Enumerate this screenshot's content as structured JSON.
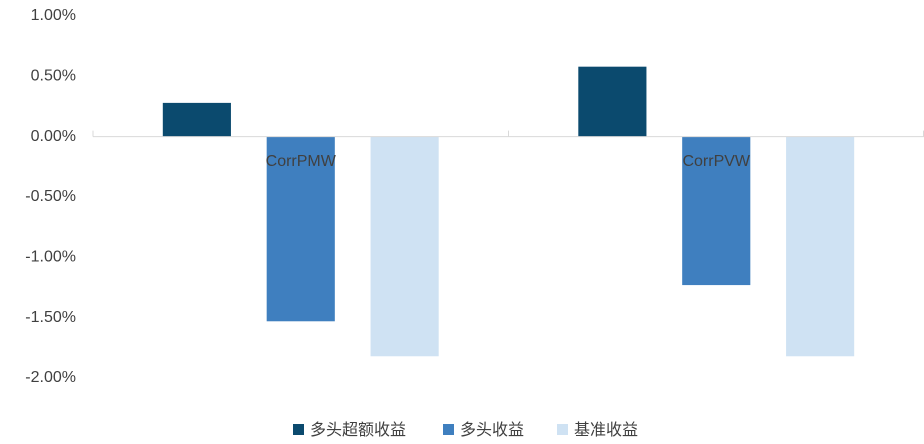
{
  "chart_data": {
    "type": "bar",
    "categories": [
      "CorrPMW",
      "CorrPVW"
    ],
    "series": [
      {
        "name": "多头超额收益",
        "color": "#0b4a6e",
        "values": [
          0.28,
          0.58
        ]
      },
      {
        "name": "多头收益",
        "color": "#3f7fbf",
        "values": [
          -1.53,
          -1.23
        ]
      },
      {
        "name": "基准收益",
        "color": "#cfe2f3",
        "values": [
          -1.82,
          -1.82
        ]
      }
    ],
    "ylim": [
      -2,
      1
    ],
    "yticks": [
      {
        "value": -2,
        "label": "-2.00%"
      },
      {
        "value": -1.5,
        "label": "-1.50%"
      },
      {
        "value": -1,
        "label": "-1.00%"
      },
      {
        "value": -0.5,
        "label": "-0.50%"
      },
      {
        "value": 0,
        "label": "0.00%"
      },
      {
        "value": 0.5,
        "label": "0.50%"
      },
      {
        "value": 1,
        "label": "1.00%"
      }
    ],
    "legend": "bottom"
  }
}
